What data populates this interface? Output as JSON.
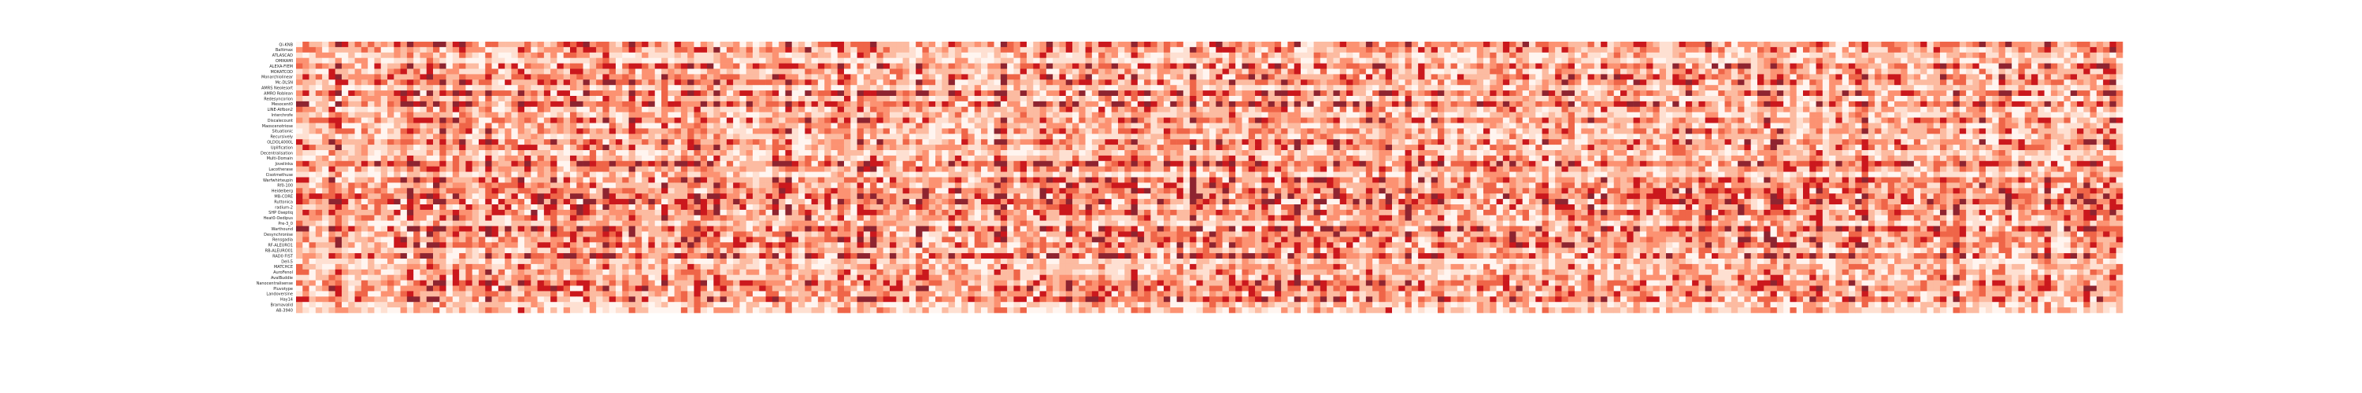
{
  "chart_data": {
    "type": "heatmap",
    "title": "",
    "xlabel": "",
    "ylabel": "",
    "rows": [
      "Qi-KNB",
      "Baltimax",
      "ATLASCAD",
      "OMIKAMI",
      "ALEXA-FIEM",
      "MOKATCOD",
      "Monarchiolinear",
      "Mc-DLSN",
      "AMRS Neolesort",
      "AMRO Roblean",
      "Redesyncorion",
      "Mesocent0",
      "LINE-Atfbon2",
      "Interchrofe",
      "Discalecount",
      "Maoscenotriose",
      "Situationic",
      "Recursively",
      "OLDOL4000L",
      "Uplification",
      "Decentralisation",
      "Multi-Domain",
      "Jovelinka",
      "Lacotherase",
      "Cisotmethuse",
      "Warfwhirteupin",
      "Rf0-100",
      "Heidelberg",
      "MB-CORE",
      "Ruttonica",
      "radium-2",
      "SHP Oseptiq",
      "Heat0-Oedipus",
      "Pre-3_0",
      "Warthound",
      "Desynchronise",
      "Rensgadia",
      "RF-ALEURO1",
      "RB-ALEURO01",
      "RAD0 FIST",
      "Dell-5",
      "MATCHCE",
      "AuroFenol",
      "AvalBuddie",
      "Nanocentralisense",
      "Pluvotype",
      "Landoversine",
      "Hay14",
      "Bramavalid",
      "AB-3940"
    ],
    "ncols": 280,
    "value_range": [
      0,
      1
    ],
    "colormap": "Reds",
    "values_note": "unreadable"
  }
}
